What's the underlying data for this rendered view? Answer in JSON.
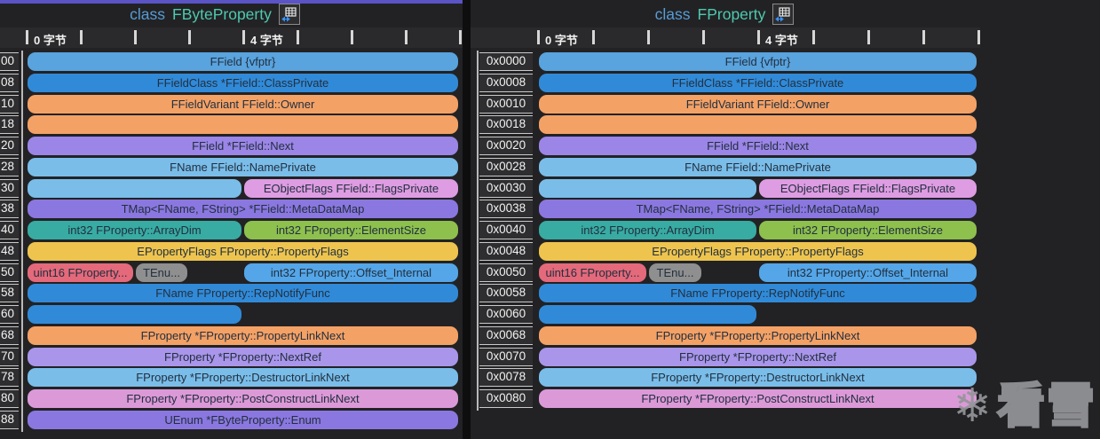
{
  "header": {
    "byte0_label": "0 字节",
    "byte4_label": "4 字节"
  },
  "watermark": {
    "icon": "snowflake",
    "glyph": "❄",
    "text": "看雪"
  },
  "colors": {
    "blue": "#59a3de",
    "blueStrong": "#318ad8",
    "skyBlue": "#54a6e8",
    "lightBlue": "#7abde9",
    "orange": "#f4a166",
    "purple": "#9b85e6",
    "purpleDark": "#8b77e0",
    "purpleLight": "#a995ea",
    "pink": "#de9ce2",
    "pinkSoft": "#dc99d8",
    "teal": "#38aba3",
    "green": "#8ec04e",
    "yellow": "#eec44e",
    "rose": "#e4697b",
    "gray": "#8f8f8f",
    "accent_active": "#5a54c6",
    "keyword": "#569cd6",
    "typename": "#4ec9b0"
  },
  "panels": [
    {
      "title_keyword": "class",
      "title_name": "FByteProperty",
      "rows": [
        {
          "offset": "00",
          "segments": [
            {
              "label": "FField {vfptr}",
              "color": "blue",
              "start": 0,
              "size": 8
            }
          ]
        },
        {
          "offset": "08",
          "segments": [
            {
              "label": "FFieldClass *FField::ClassPrivate",
              "color": "blueStrong",
              "start": 0,
              "size": 8
            }
          ]
        },
        {
          "offset": "10",
          "segments": [
            {
              "label": "FFieldVariant FField::Owner",
              "color": "orange",
              "start": 0,
              "size": 8
            }
          ]
        },
        {
          "offset": "18",
          "segments": [
            {
              "label": "",
              "color": "orange",
              "start": 0,
              "size": 8
            }
          ]
        },
        {
          "offset": "20",
          "segments": [
            {
              "label": "FField *FField::Next",
              "color": "purple",
              "start": 0,
              "size": 8
            }
          ]
        },
        {
          "offset": "28",
          "segments": [
            {
              "label": "FName FField::NamePrivate",
              "color": "lightBlue",
              "start": 0,
              "size": 8
            }
          ]
        },
        {
          "offset": "30",
          "segments": [
            {
              "label": "",
              "color": "lightBlue",
              "start": 0,
              "size": 4
            },
            {
              "label": "EObjectFlags FField::FlagsPrivate",
              "color": "pink",
              "start": 4,
              "size": 4
            }
          ]
        },
        {
          "offset": "38",
          "segments": [
            {
              "label": "TMap<FName, FString> *FField::MetaDataMap",
              "color": "purpleDark",
              "start": 0,
              "size": 8
            }
          ]
        },
        {
          "offset": "40",
          "segments": [
            {
              "label": "int32 FProperty::ArrayDim",
              "color": "teal",
              "start": 0,
              "size": 4
            },
            {
              "label": "int32 FProperty::ElementSize",
              "color": "green",
              "start": 4,
              "size": 4
            }
          ]
        },
        {
          "offset": "48",
          "segments": [
            {
              "label": "EPropertyFlags FProperty::PropertyFlags",
              "color": "yellow",
              "start": 0,
              "size": 8
            }
          ]
        },
        {
          "offset": "50",
          "segments": [
            {
              "label": "uint16 FProperty...",
              "color": "rose",
              "start": 0,
              "size": 2
            },
            {
              "label": "TEnu...",
              "color": "gray",
              "start": 2,
              "size": 1
            },
            {
              "label": "int32 FProperty::Offset_Internal",
              "color": "skyBlue",
              "start": 4,
              "size": 4
            }
          ]
        },
        {
          "offset": "58",
          "segments": [
            {
              "label": "FName FProperty::RepNotifyFunc",
              "color": "blueStrong",
              "start": 0,
              "size": 8
            }
          ]
        },
        {
          "offset": "60",
          "segments": [
            {
              "label": "",
              "color": "blueStrong",
              "start": 0,
              "size": 4
            }
          ]
        },
        {
          "offset": "68",
          "segments": [
            {
              "label": "FProperty *FProperty::PropertyLinkNext",
              "color": "orange",
              "start": 0,
              "size": 8
            }
          ]
        },
        {
          "offset": "70",
          "segments": [
            {
              "label": "FProperty *FProperty::NextRef",
              "color": "purpleLight",
              "start": 0,
              "size": 8
            }
          ]
        },
        {
          "offset": "78",
          "segments": [
            {
              "label": "FProperty *FProperty::DestructorLinkNext",
              "color": "lightBlue",
              "start": 0,
              "size": 8
            }
          ]
        },
        {
          "offset": "80",
          "segments": [
            {
              "label": "FProperty *FProperty::PostConstructLinkNext",
              "color": "pinkSoft",
              "start": 0,
              "size": 8
            }
          ]
        },
        {
          "offset": "88",
          "segments": [
            {
              "label": "UEnum *FByteProperty::Enum",
              "color": "purpleDark",
              "start": 0,
              "size": 8
            }
          ]
        }
      ]
    },
    {
      "title_keyword": "class",
      "title_name": "FProperty",
      "rows": [
        {
          "offset": "0x0000",
          "segments": [
            {
              "label": "FField {vfptr}",
              "color": "blue",
              "start": 0,
              "size": 8
            }
          ]
        },
        {
          "offset": "0x0008",
          "segments": [
            {
              "label": "FFieldClass *FField::ClassPrivate",
              "color": "blueStrong",
              "start": 0,
              "size": 8
            }
          ]
        },
        {
          "offset": "0x0010",
          "segments": [
            {
              "label": "FFieldVariant FField::Owner",
              "color": "orange",
              "start": 0,
              "size": 8
            }
          ]
        },
        {
          "offset": "0x0018",
          "segments": [
            {
              "label": "",
              "color": "orange",
              "start": 0,
              "size": 8
            }
          ]
        },
        {
          "offset": "0x0020",
          "segments": [
            {
              "label": "FField *FField::Next",
              "color": "purple",
              "start": 0,
              "size": 8
            }
          ]
        },
        {
          "offset": "0x0028",
          "segments": [
            {
              "label": "FName FField::NamePrivate",
              "color": "lightBlue",
              "start": 0,
              "size": 8
            }
          ]
        },
        {
          "offset": "0x0030",
          "segments": [
            {
              "label": "",
              "color": "lightBlue",
              "start": 0,
              "size": 4
            },
            {
              "label": "EObjectFlags FField::FlagsPrivate",
              "color": "pink",
              "start": 4,
              "size": 4
            }
          ]
        },
        {
          "offset": "0x0038",
          "segments": [
            {
              "label": "TMap<FName, FString> *FField::MetaDataMap",
              "color": "purpleDark",
              "start": 0,
              "size": 8
            }
          ]
        },
        {
          "offset": "0x0040",
          "segments": [
            {
              "label": "int32 FProperty::ArrayDim",
              "color": "teal",
              "start": 0,
              "size": 4
            },
            {
              "label": "int32 FProperty::ElementSize",
              "color": "green",
              "start": 4,
              "size": 4
            }
          ]
        },
        {
          "offset": "0x0048",
          "segments": [
            {
              "label": "EPropertyFlags FProperty::PropertyFlags",
              "color": "yellow",
              "start": 0,
              "size": 8
            }
          ]
        },
        {
          "offset": "0x0050",
          "segments": [
            {
              "label": "uint16 FProperty...",
              "color": "rose",
              "start": 0,
              "size": 2
            },
            {
              "label": "TEnu...",
              "color": "gray",
              "start": 2,
              "size": 1
            },
            {
              "label": "int32 FProperty::Offset_Internal",
              "color": "skyBlue",
              "start": 4,
              "size": 4
            }
          ]
        },
        {
          "offset": "0x0058",
          "segments": [
            {
              "label": "FName FProperty::RepNotifyFunc",
              "color": "blueStrong",
              "start": 0,
              "size": 8
            }
          ]
        },
        {
          "offset": "0x0060",
          "segments": [
            {
              "label": "",
              "color": "blueStrong",
              "start": 0,
              "size": 4
            }
          ]
        },
        {
          "offset": "0x0068",
          "segments": [
            {
              "label": "FProperty *FProperty::PropertyLinkNext",
              "color": "orange",
              "start": 0,
              "size": 8
            }
          ]
        },
        {
          "offset": "0x0070",
          "segments": [
            {
              "label": "FProperty *FProperty::NextRef",
              "color": "purpleLight",
              "start": 0,
              "size": 8
            }
          ]
        },
        {
          "offset": "0x0078",
          "segments": [
            {
              "label": "FProperty *FProperty::DestructorLinkNext",
              "color": "lightBlue",
              "start": 0,
              "size": 8
            }
          ]
        },
        {
          "offset": "0x0080",
          "segments": [
            {
              "label": "FProperty *FProperty::PostConstructLinkNext",
              "color": "pinkSoft",
              "start": 0,
              "size": 8
            }
          ]
        }
      ]
    }
  ]
}
